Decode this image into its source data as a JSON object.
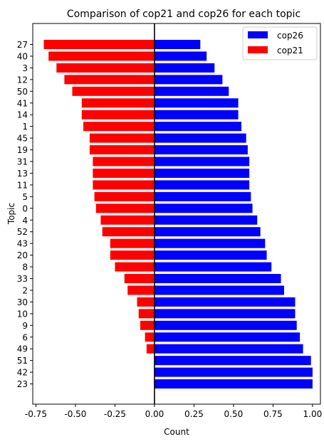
{
  "chart_data": {
    "type": "bar",
    "orientation": "horizontal",
    "title": "Comparison of cop21 and cop26 for each topic",
    "xlabel": "Count",
    "ylabel": "Topic",
    "xlim": [
      -0.77,
      1.05
    ],
    "xticks": [
      "-0.75",
      "-0.50",
      "-0.25",
      "0.00",
      "0.25",
      "0.50",
      "0.75",
      "1.00"
    ],
    "xtick_values": [
      -0.75,
      -0.5,
      -0.25,
      0,
      0.25,
      0.5,
      0.75,
      1.0
    ],
    "grid": false,
    "legend_position": "top-right",
    "categories": [
      "27",
      "40",
      "3",
      "12",
      "50",
      "41",
      "14",
      "1",
      "45",
      "19",
      "31",
      "13",
      "11",
      "5",
      "0",
      "4",
      "52",
      "43",
      "20",
      "8",
      "33",
      "2",
      "30",
      "10",
      "9",
      "6",
      "49",
      "51",
      "42",
      "23"
    ],
    "series": [
      {
        "name": "cop26",
        "color": "#0000ff",
        "values": [
          0.29,
          0.33,
          0.38,
          0.43,
          0.47,
          0.53,
          0.53,
          0.55,
          0.58,
          0.59,
          0.6,
          0.6,
          0.6,
          0.61,
          0.62,
          0.65,
          0.67,
          0.7,
          0.71,
          0.74,
          0.8,
          0.82,
          0.89,
          0.89,
          0.9,
          0.92,
          0.94,
          0.99,
          1.0,
          1.0
        ]
      },
      {
        "name": "cop21",
        "color": "#ff0000",
        "values": [
          -0.7,
          -0.67,
          -0.62,
          -0.57,
          -0.52,
          -0.46,
          -0.46,
          -0.45,
          -0.41,
          -0.41,
          -0.39,
          -0.39,
          -0.39,
          -0.38,
          -0.37,
          -0.34,
          -0.33,
          -0.28,
          -0.28,
          -0.25,
          -0.19,
          -0.17,
          -0.11,
          -0.1,
          -0.09,
          -0.06,
          -0.05,
          0.0,
          0.0,
          0.0
        ]
      }
    ]
  }
}
